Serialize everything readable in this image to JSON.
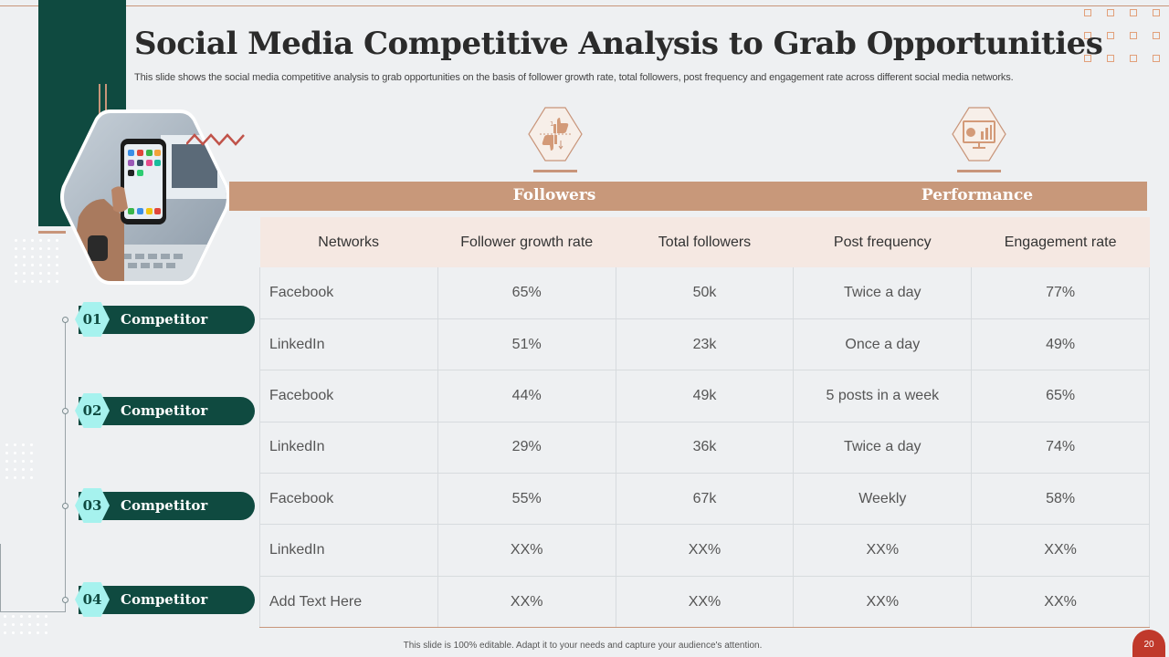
{
  "title": "Social Media Competitive Analysis to Grab Opportunities",
  "subtitle": "This slide shows the social media competitive analysis to grab opportunities on the basis of follower growth rate, total followers, post frequency and engagement rate across different social media networks.",
  "groups": {
    "followers": {
      "label": "Followers",
      "icon": "thumbs-up-down-icon"
    },
    "performance": {
      "label": "Performance",
      "icon": "presentation-chart-icon"
    }
  },
  "competitors": [
    {
      "num": "01",
      "label": "Competitor"
    },
    {
      "num": "02",
      "label": "Competitor"
    },
    {
      "num": "03",
      "label": "Competitor"
    },
    {
      "num": "04",
      "label": "Competitor"
    }
  ],
  "table": {
    "headers": [
      "Networks",
      "Follower growth rate",
      "Total followers",
      "Post frequency",
      "Engagement rate"
    ],
    "rows": [
      [
        "Facebook",
        "65%",
        "50k",
        "Twice a day",
        "77%"
      ],
      [
        "LinkedIn",
        "51%",
        "23k",
        "Once a day",
        "49%"
      ],
      [
        "Facebook",
        "44%",
        "49k",
        "5 posts in a week",
        "65%"
      ],
      [
        "LinkedIn",
        "29%",
        "36k",
        "Twice a day",
        "74%"
      ],
      [
        "Facebook",
        "55%",
        "67k",
        "Weekly",
        "58%"
      ],
      [
        "LinkedIn",
        "XX%",
        "XX%",
        "XX%",
        "XX%"
      ],
      [
        "Add Text Here",
        "XX%",
        "XX%",
        "XX%",
        "XX%"
      ]
    ]
  },
  "footer": "This slide is 100% editable. Adapt it to your needs and capture your audience's attention.",
  "page_number": "20",
  "colors": {
    "dark_green": "#0f4a40",
    "tan": "#c8987a",
    "mint": "#a6f2ee",
    "red": "#c0392b"
  }
}
